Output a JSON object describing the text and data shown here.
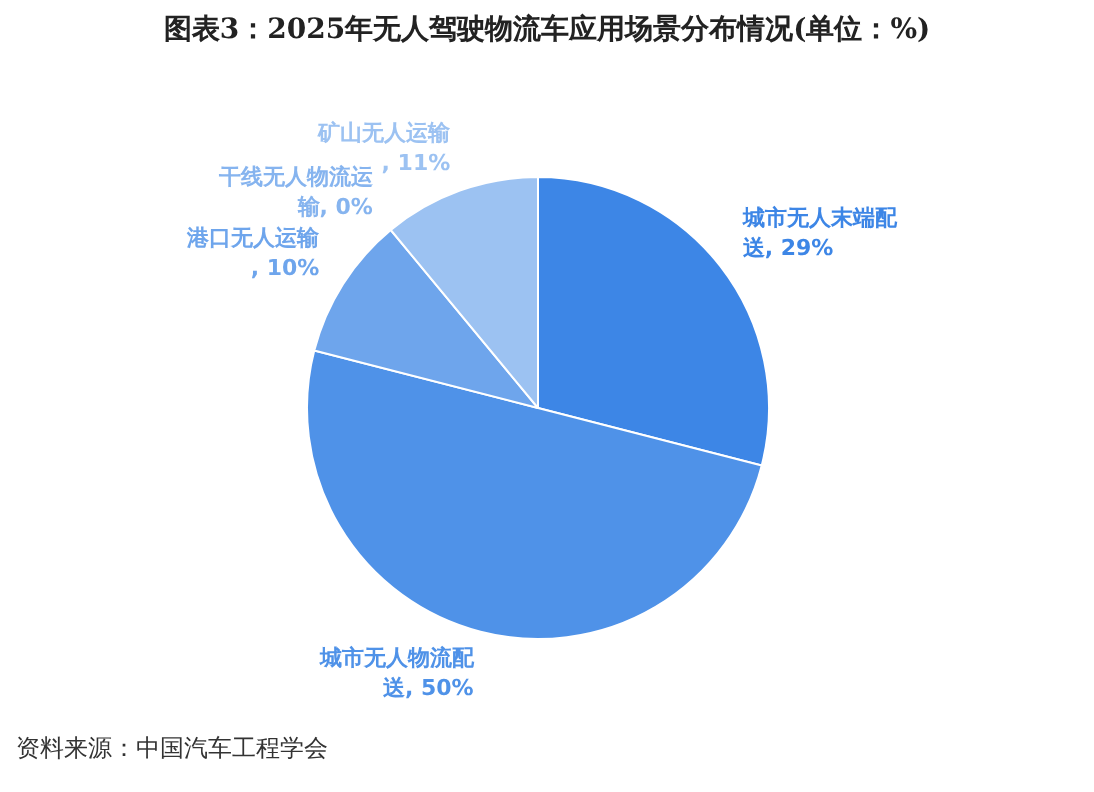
{
  "chart_data": {
    "type": "pie",
    "title": "图表3：2025年无人驾驶物流车应用场景分布情况(单位：%)",
    "categories": [
      "城市无人末端配送",
      "城市无人物流配送",
      "港口无人运输",
      "干线无人物流运输",
      "矿山无人运输"
    ],
    "values": [
      29,
      50,
      10,
      0,
      11
    ],
    "colors": [
      "#3d86e6",
      "#4f92e8",
      "#6ea5ec",
      "#86b4ef",
      "#9cc2f2"
    ],
    "value_labels": [
      ", 29%",
      ", 50%",
      ", 10%",
      ", 0%",
      ", 11%"
    ],
    "legend": false,
    "annotations": [
      "资料来源：中国汽车工程学会"
    ]
  }
}
